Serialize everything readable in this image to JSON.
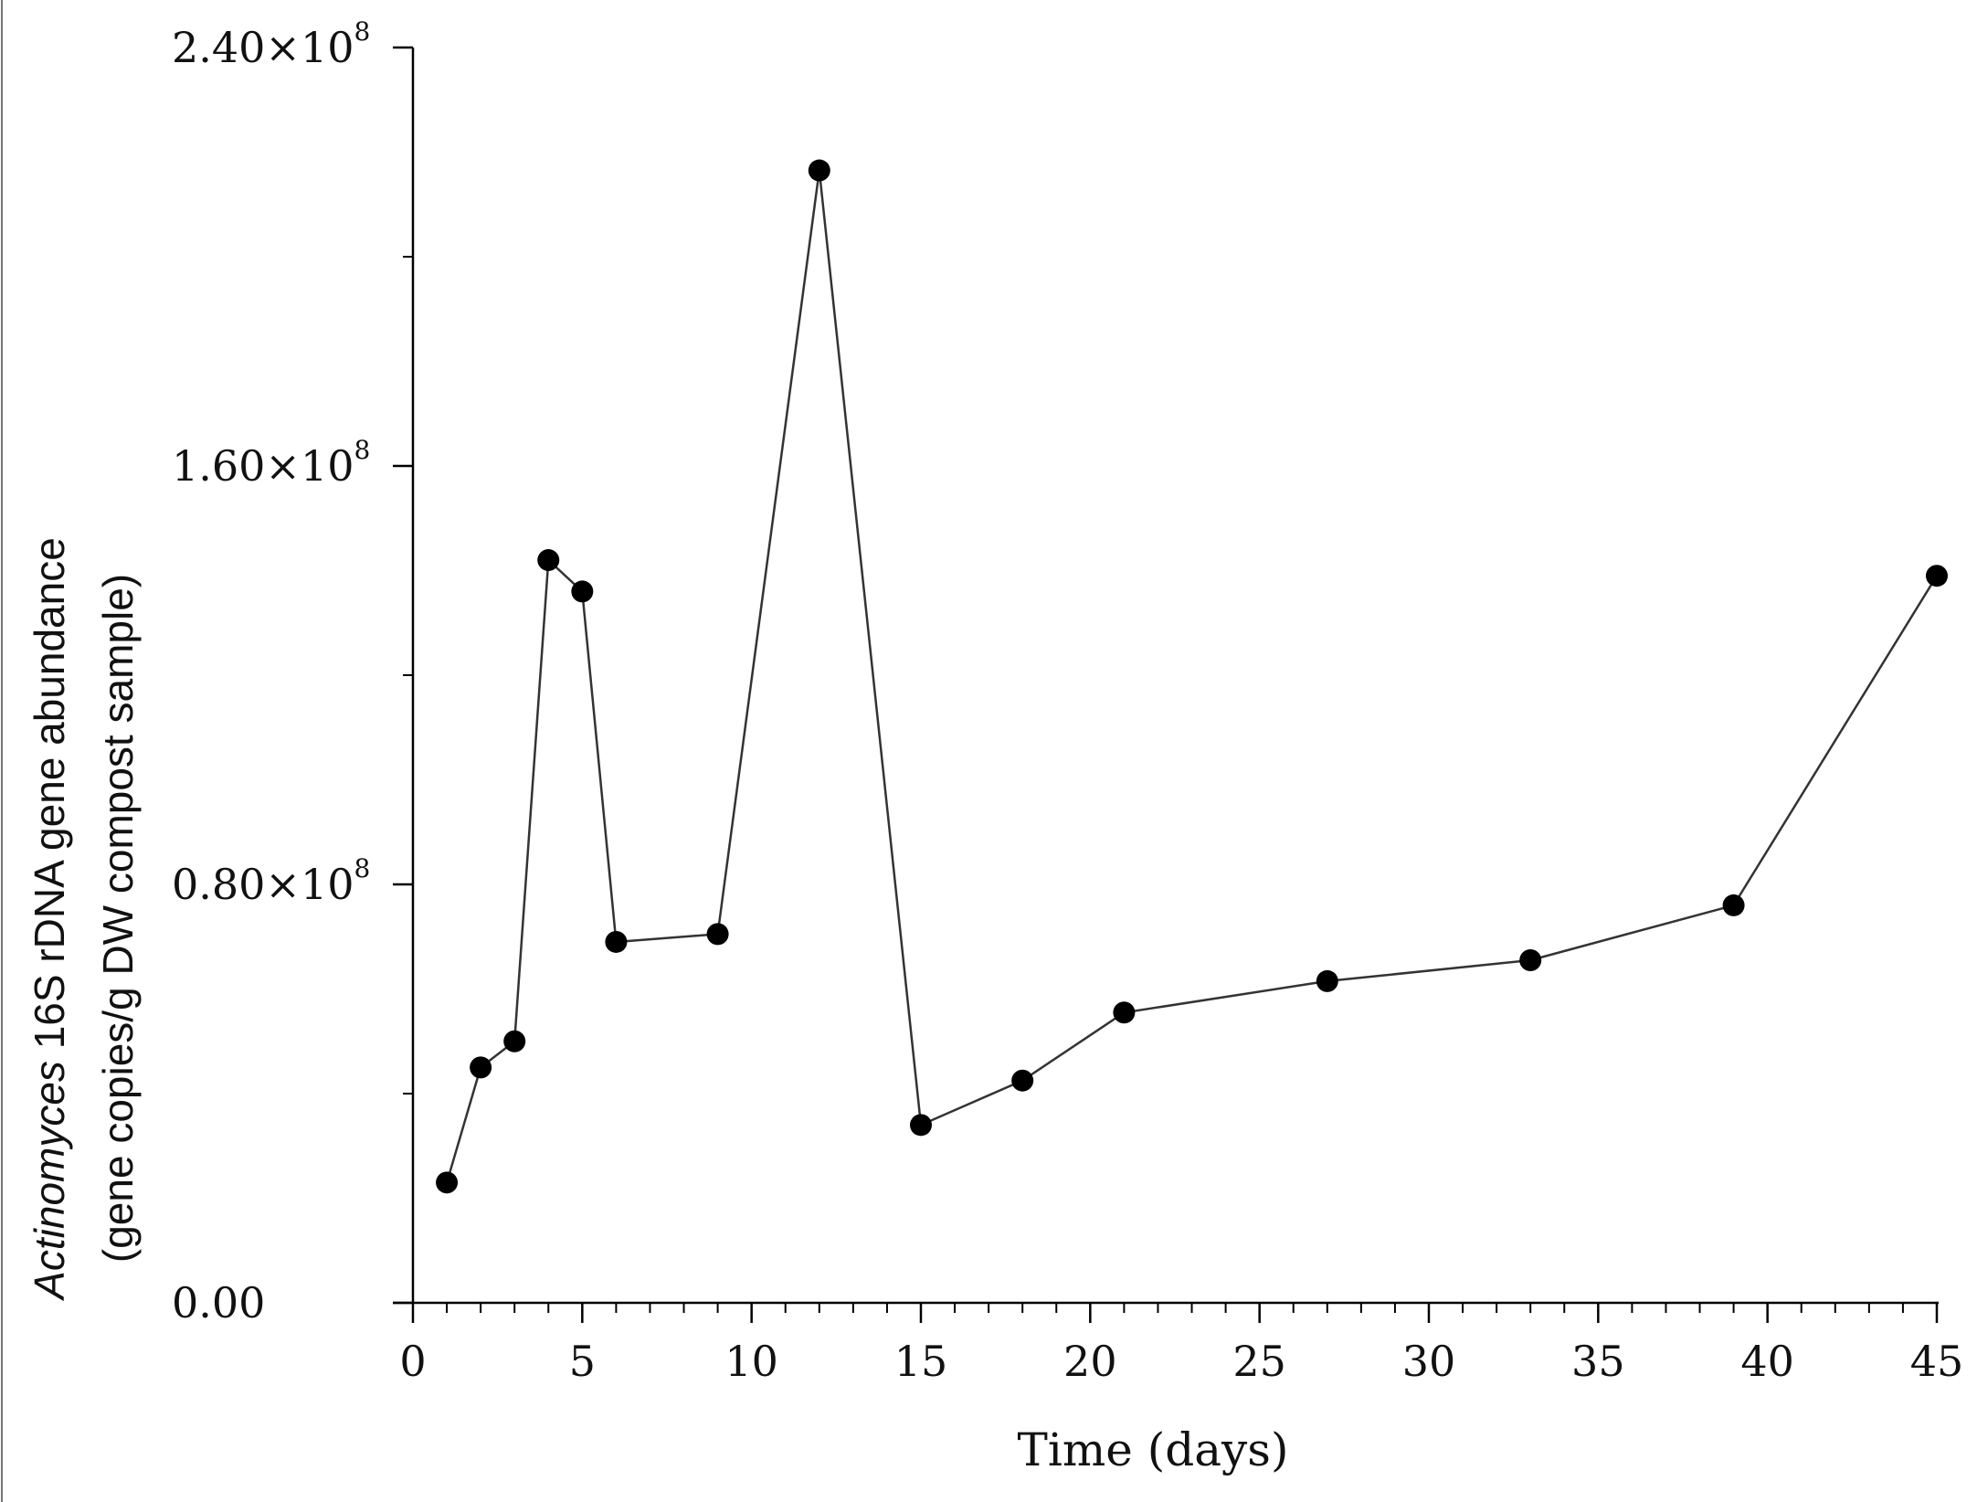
{
  "chart_data": {
    "type": "line",
    "title": "",
    "xlabel": "Time (days)",
    "ylabel_italic": "Actinomyces",
    "ylabel_rest": " 16S rDNA gene abundance",
    "ylabel_line2": "(gene copies/g DW compost sample)",
    "xlim": [
      0,
      45
    ],
    "ylim": [
      0,
      240000000
    ],
    "x_ticks": [
      0,
      5,
      10,
      15,
      20,
      25,
      30,
      35,
      40,
      45
    ],
    "x_tick_labels": [
      "0",
      "5",
      "10",
      "15",
      "20",
      "25",
      "30",
      "35",
      "40",
      "45"
    ],
    "x_minor_step": 1,
    "y_ticks": [
      0,
      80000000,
      160000000,
      240000000
    ],
    "y_tick_labels": [
      {
        "mantissa": "0.00",
        "times": "",
        "base": "",
        "exp": ""
      },
      {
        "mantissa": "0.80",
        "times": "×",
        "base": "10",
        "exp": "8"
      },
      {
        "mantissa": "1.60",
        "times": "×",
        "base": "10",
        "exp": "8"
      },
      {
        "mantissa": "2.40",
        "times": "×",
        "base": "10",
        "exp": "8"
      }
    ],
    "y_minor_step": 40000000,
    "grid": false,
    "series": [
      {
        "color": "#000000",
        "line_color": "#333333",
        "marker": "circle",
        "points": [
          {
            "x": 1,
            "y": 23000000
          },
          {
            "x": 2,
            "y": 45000000
          },
          {
            "x": 3,
            "y": 50000000
          },
          {
            "x": 4,
            "y": 142000000
          },
          {
            "x": 5,
            "y": 136000000
          },
          {
            "x": 6,
            "y": 69000000
          },
          {
            "x": 9,
            "y": 70500000
          },
          {
            "x": 12,
            "y": 216500000
          },
          {
            "x": 15,
            "y": 34000000
          },
          {
            "x": 18,
            "y": 42500000
          },
          {
            "x": 21,
            "y": 55500000
          },
          {
            "x": 27,
            "y": 61500000
          },
          {
            "x": 33,
            "y": 65500000
          },
          {
            "x": 39,
            "y": 76000000
          },
          {
            "x": 45,
            "y": 139000000
          }
        ]
      }
    ]
  }
}
